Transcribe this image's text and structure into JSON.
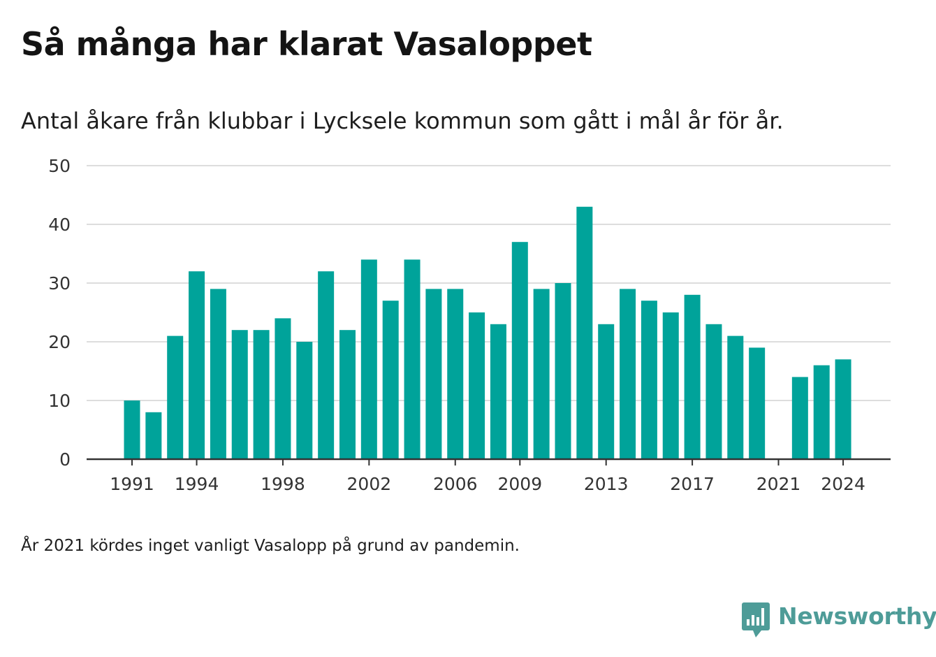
{
  "title": "Så många har klarat Vasaloppet",
  "subtitle": "Antal åkare från klubbar i Lycksele kommun som gått i mål år för år.",
  "note": "År 2021 kördes inget vanligt Vasalopp på grund av pandemin.",
  "logo": {
    "text": "Newsworthy",
    "icon": "bar-chart-speech-bubble-icon",
    "color": "#4e9c98"
  },
  "colors": {
    "bar": "#00a39a",
    "grid": "#dddddd",
    "axis": "#333333"
  },
  "chart_data": {
    "type": "bar",
    "categories": [
      1991,
      1992,
      1993,
      1994,
      1995,
      1996,
      1997,
      1998,
      1999,
      2000,
      2001,
      2002,
      2003,
      2004,
      2005,
      2006,
      2007,
      2008,
      2009,
      2010,
      2011,
      2012,
      2013,
      2014,
      2015,
      2016,
      2017,
      2018,
      2019,
      2020,
      2021,
      2022,
      2023,
      2024
    ],
    "values": [
      10,
      8,
      21,
      32,
      29,
      22,
      22,
      24,
      20,
      32,
      22,
      34,
      27,
      34,
      29,
      29,
      25,
      23,
      37,
      29,
      30,
      43,
      23,
      29,
      27,
      25,
      28,
      23,
      21,
      19,
      null,
      14,
      16,
      17
    ],
    "x_tick_labels": [
      "1991",
      "1994",
      "1998",
      "2002",
      "2006",
      "2009",
      "2013",
      "2017",
      "2021",
      "2024"
    ],
    "y_ticks": [
      0,
      10,
      20,
      30,
      40,
      50
    ],
    "ylim": [
      0,
      50
    ],
    "grid": true,
    "xlabel": "",
    "ylabel": ""
  }
}
